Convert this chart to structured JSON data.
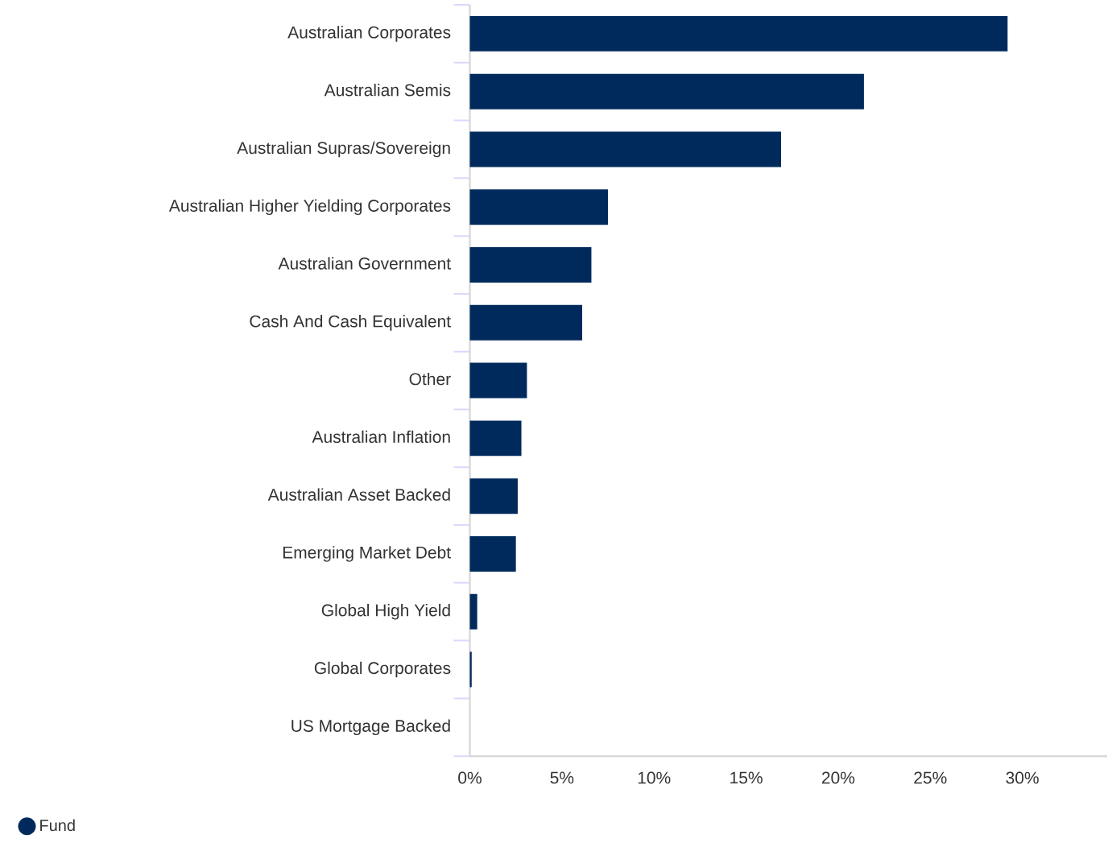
{
  "chart_data": {
    "type": "bar",
    "orientation": "horizontal",
    "categories": [
      "Australian Corporates",
      "Australian Semis",
      "Australian Supras/Sovereign",
      "Australian Higher Yielding Corporates",
      "Australian Government",
      "Cash And Cash Equivalent",
      "Other",
      "Australian Inflation",
      "Australian Asset Backed",
      "Emerging Market Debt",
      "Global High Yield",
      "Global Corporates",
      "US Mortgage Backed"
    ],
    "series": [
      {
        "name": "Fund",
        "color": "#002a5c",
        "values": [
          29.2,
          21.4,
          16.9,
          7.5,
          6.6,
          6.1,
          3.1,
          2.8,
          2.6,
          2.5,
          0.4,
          0.1,
          0
        ]
      }
    ],
    "xlim": [
      0,
      34.6
    ],
    "xticks": [
      {
        "value": 0,
        "label": "0%"
      },
      {
        "value": 5,
        "label": "5%"
      },
      {
        "value": 10,
        "label": "10%"
      },
      {
        "value": 15,
        "label": "15%"
      },
      {
        "value": 20,
        "label": "20%"
      },
      {
        "value": 25,
        "label": "25%"
      },
      {
        "value": 30,
        "label": "30%"
      }
    ],
    "legend": "bottom left",
    "marker": "circle"
  }
}
